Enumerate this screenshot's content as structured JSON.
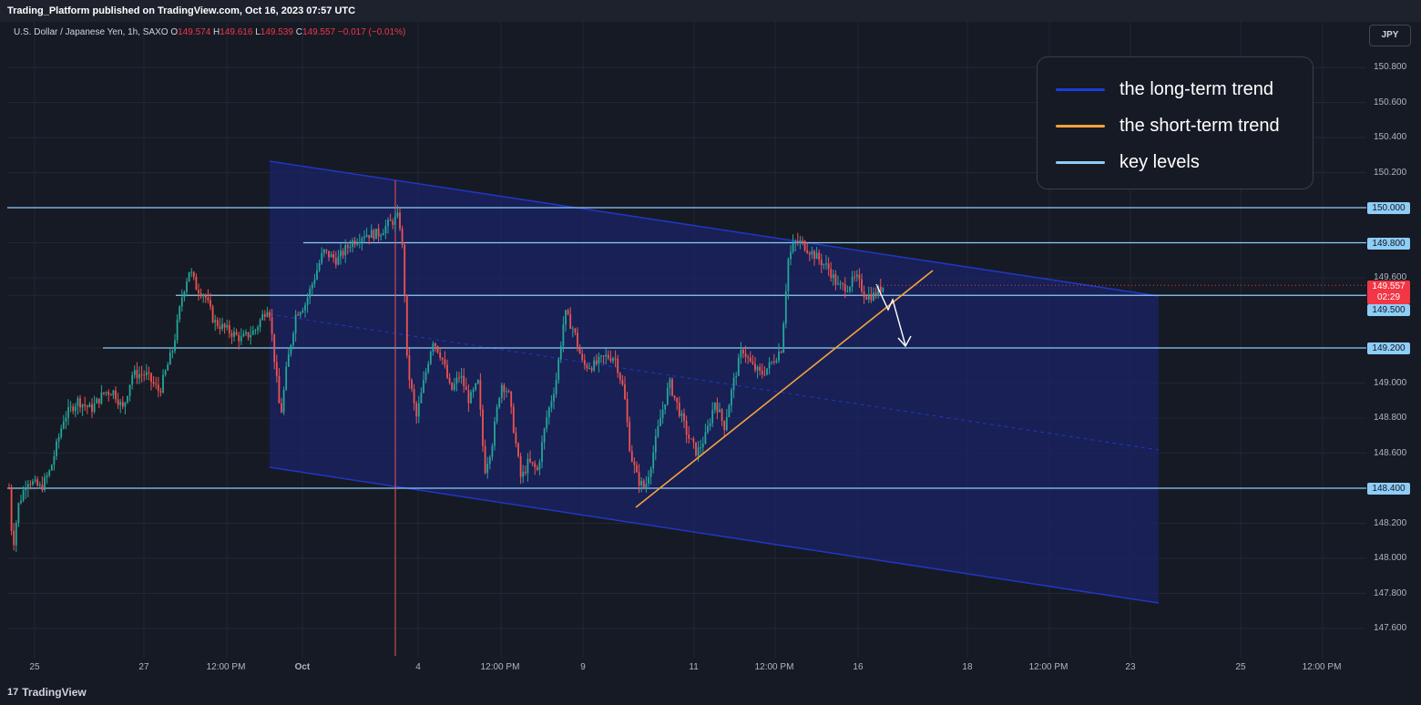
{
  "header": {
    "publish_info": "Trading_Platform published on TradingView.com, Oct 16, 2023 07:57 UTC"
  },
  "symbol": {
    "name": "U.S. Dollar / Japanese Yen, 1h, SAXO",
    "open_label": "O",
    "open": "149.574",
    "high_label": "H",
    "high": "149.616",
    "low_label": "L",
    "low": "149.539",
    "close_label": "C",
    "close": "149.557",
    "change": "−0.017 (−0.01%)"
  },
  "currency_button": "JPY",
  "branding": "TradingView",
  "branding_mark": "17",
  "legend": [
    {
      "label": "the long-term trend",
      "color": "#1e3dd8"
    },
    {
      "label": "the short-term trend",
      "color": "#f7a23c"
    },
    {
      "label": "key levels",
      "color": "#8ecdf7"
    }
  ],
  "current_price_tag": {
    "price": "149.557",
    "countdown": "02:29"
  },
  "colors": {
    "bull": "#26a69a",
    "bear": "#ef5350",
    "channel_fill": "#1a2366",
    "channel_line": "#2137c2",
    "key_level": "#8ecdf7",
    "short_trend": "#f7a23c",
    "arrow": "#ffffff",
    "current_price": "#f23645"
  },
  "chart_data": {
    "type": "candlestick",
    "title": "U.S. Dollar / Japanese Yen, 1h, SAXO",
    "y_axis_ticks": [
      "150.800",
      "150.600",
      "150.400",
      "150.200",
      "150.000",
      "149.800",
      "149.600",
      "149.500",
      "149.200",
      "149.000",
      "148.800",
      "148.600",
      "148.400",
      "148.200",
      "148.000",
      "147.800",
      "147.600"
    ],
    "x_axis_ticks": [
      "25",
      "27",
      "12:00 PM",
      "Oct",
      "4",
      "12:00 PM",
      "9",
      "11",
      "12:00 PM",
      "16",
      "18",
      "12:00 PM",
      "23",
      "25",
      "12:00 PM"
    ],
    "key_levels": [
      150.0,
      149.8,
      149.5,
      149.2,
      148.4
    ],
    "key_level_labels": [
      "150.000",
      "149.800",
      "149.500",
      "149.200",
      "148.400"
    ],
    "current_price": 149.557,
    "close_path": [
      [
        0,
        148.4
      ],
      [
        4,
        148.05
      ],
      [
        10,
        148.3
      ],
      [
        20,
        148.45
      ],
      [
        35,
        148.4
      ],
      [
        45,
        148.5
      ],
      [
        60,
        148.8
      ],
      [
        75,
        148.9
      ],
      [
        90,
        148.85
      ],
      [
        105,
        148.95
      ],
      [
        115,
        148.95
      ],
      [
        125,
        148.85
      ],
      [
        135,
        149.05
      ],
      [
        150,
        149.05
      ],
      [
        165,
        148.95
      ],
      [
        180,
        149.2
      ],
      [
        190,
        149.5
      ],
      [
        198,
        149.65
      ],
      [
        205,
        149.55
      ],
      [
        215,
        149.5
      ],
      [
        225,
        149.35
      ],
      [
        240,
        149.3
      ],
      [
        255,
        149.25
      ],
      [
        270,
        149.3
      ],
      [
        285,
        149.45
      ],
      [
        290,
        149.2
      ],
      [
        298,
        148.8
      ],
      [
        305,
        149.1
      ],
      [
        315,
        149.4
      ],
      [
        325,
        149.45
      ],
      [
        335,
        149.6
      ],
      [
        345,
        149.75
      ],
      [
        360,
        149.7
      ],
      [
        375,
        149.8
      ],
      [
        390,
        149.85
      ],
      [
        405,
        149.85
      ],
      [
        415,
        149.9
      ],
      [
        428,
        149.95
      ],
      [
        433,
        149.7
      ],
      [
        437,
        149.1
      ],
      [
        447,
        148.8
      ],
      [
        455,
        149.0
      ],
      [
        465,
        149.25
      ],
      [
        475,
        149.15
      ],
      [
        485,
        148.95
      ],
      [
        495,
        149.05
      ],
      [
        505,
        148.9
      ],
      [
        515,
        149.0
      ],
      [
        522,
        148.5
      ],
      [
        530,
        148.65
      ],
      [
        540,
        149.0
      ],
      [
        548,
        148.95
      ],
      [
        555,
        148.7
      ],
      [
        562,
        148.45
      ],
      [
        570,
        148.55
      ],
      [
        580,
        148.5
      ],
      [
        590,
        148.8
      ],
      [
        600,
        149.0
      ],
      [
        610,
        149.4
      ],
      [
        620,
        149.3
      ],
      [
        630,
        149.1
      ],
      [
        642,
        149.1
      ],
      [
        655,
        149.15
      ],
      [
        665,
        149.15
      ],
      [
        675,
        148.95
      ],
      [
        682,
        148.6
      ],
      [
        690,
        148.45
      ],
      [
        698,
        148.4
      ],
      [
        705,
        148.55
      ],
      [
        715,
        148.8
      ],
      [
        725,
        149.0
      ],
      [
        735,
        148.85
      ],
      [
        745,
        148.7
      ],
      [
        755,
        148.6
      ],
      [
        765,
        148.7
      ],
      [
        775,
        148.9
      ],
      [
        785,
        148.75
      ],
      [
        795,
        149.0
      ],
      [
        805,
        149.2
      ],
      [
        815,
        149.1
      ],
      [
        825,
        149.05
      ],
      [
        835,
        149.1
      ],
      [
        848,
        149.2
      ],
      [
        855,
        149.7
      ],
      [
        862,
        149.8
      ],
      [
        870,
        149.8
      ],
      [
        880,
        149.75
      ],
      [
        890,
        149.7
      ],
      [
        900,
        149.65
      ],
      [
        910,
        149.55
      ],
      [
        920,
        149.55
      ],
      [
        930,
        149.6
      ],
      [
        940,
        149.5
      ],
      [
        950,
        149.5
      ],
      [
        958,
        149.55
      ],
      [
        962,
        149.557
      ]
    ]
  }
}
